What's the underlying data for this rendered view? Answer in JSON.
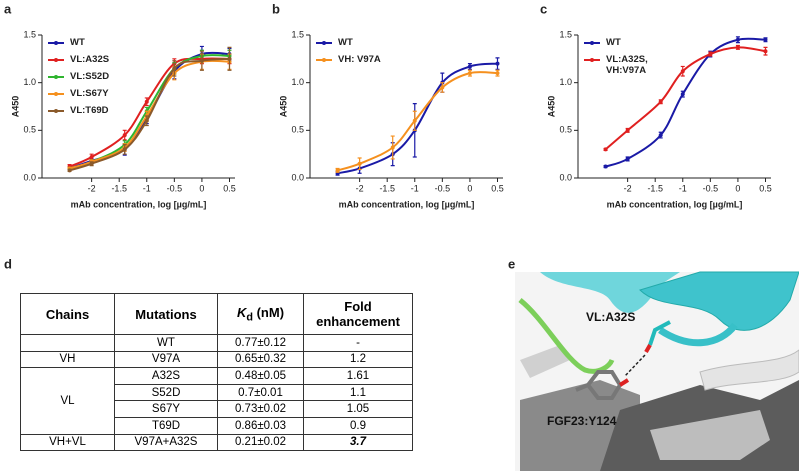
{
  "chart_data": [
    {
      "type": "line",
      "panel_label": "a",
      "xlabel": "mAb concentration, log [µg/mL]",
      "ylabel": "A450",
      "x": [
        -2.4,
        -2.0,
        -1.4,
        -1.0,
        -0.5,
        0,
        0.5
      ],
      "xlim": [
        -2.9,
        0.6
      ],
      "xticks": [
        -2,
        -1.5,
        -1,
        -0.5,
        0,
        0.5
      ],
      "ylim": [
        0,
        1.5
      ],
      "yticks": [
        {
          "value": 0,
          "label": "0.0"
        },
        {
          "value": 0.5,
          "label": "0.5"
        },
        {
          "value": 1,
          "label": "1.0"
        },
        {
          "value": 1.5,
          "label": "1.5"
        }
      ],
      "legend": "upper left",
      "series": [
        {
          "name": "WT",
          "color": "#1a1aa6",
          "values": [
            0.1,
            0.18,
            0.3,
            0.62,
            1.12,
            1.3,
            1.3
          ],
          "errors": [
            0.01,
            0.02,
            0.06,
            0.05,
            0.08,
            0.08,
            0.06
          ]
        },
        {
          "name": "VL:A32S",
          "color": "#e02020",
          "values": [
            0.12,
            0.22,
            0.45,
            0.8,
            1.2,
            1.25,
            1.25
          ],
          "errors": [
            0.02,
            0.03,
            0.05,
            0.04,
            0.05,
            0.05,
            0.05
          ]
        },
        {
          "name": "VL:S52D",
          "color": "#2fb52f",
          "values": [
            0.1,
            0.17,
            0.35,
            0.7,
            1.15,
            1.28,
            1.28
          ],
          "errors": [
            0.01,
            0.02,
            0.04,
            0.04,
            0.06,
            0.06,
            0.06
          ]
        },
        {
          "name": "VL:S67Y",
          "color": "#f5901e",
          "values": [
            0.1,
            0.17,
            0.32,
            0.65,
            1.1,
            1.22,
            1.22
          ],
          "errors": [
            0.01,
            0.02,
            0.04,
            0.05,
            0.07,
            0.08,
            0.08
          ]
        },
        {
          "name": "VL:T69D",
          "color": "#8b5a2b",
          "values": [
            0.08,
            0.15,
            0.3,
            0.6,
            1.15,
            1.23,
            1.25
          ],
          "errors": [
            0.01,
            0.02,
            0.05,
            0.05,
            0.08,
            0.1,
            0.12
          ]
        }
      ]
    },
    {
      "type": "line",
      "panel_label": "b",
      "xlabel": "mAb concentration, log [µg/mL]",
      "ylabel": "A450",
      "x": [
        -2.4,
        -2.0,
        -1.4,
        -1.0,
        -0.5,
        0,
        0.5
      ],
      "xlim": [
        -2.9,
        0.6
      ],
      "xticks": [
        -2,
        -1.5,
        -1,
        -0.5,
        0,
        0.5
      ],
      "ylim": [
        0,
        1.5
      ],
      "yticks": [
        {
          "value": 0,
          "label": "0.0"
        },
        {
          "value": 0.5,
          "label": "0.5"
        },
        {
          "value": 1,
          "label": "1.0"
        },
        {
          "value": 1.5,
          "label": "1.5"
        }
      ],
      "legend": "upper left",
      "series": [
        {
          "name": "WT",
          "color": "#1a1aa6",
          "values": [
            0.05,
            0.1,
            0.25,
            0.5,
            1.0,
            1.17,
            1.2
          ],
          "errors": [
            0.02,
            0.05,
            0.12,
            0.28,
            0.1,
            0.03,
            0.06
          ]
        },
        {
          "name": "VH: V97A",
          "color": "#f5901e",
          "values": [
            0.08,
            0.15,
            0.32,
            0.6,
            0.95,
            1.1,
            1.1
          ],
          "errors": [
            0.02,
            0.06,
            0.12,
            0.1,
            0.05,
            0.03,
            0.03
          ]
        }
      ]
    },
    {
      "type": "line",
      "panel_label": "c",
      "xlabel": "mAb concentration, log [µg/mL]",
      "ylabel": "A450",
      "x": [
        -2.4,
        -2.0,
        -1.4,
        -1.0,
        -0.5,
        0,
        0.5
      ],
      "xlim": [
        -2.9,
        0.6
      ],
      "xticks": [
        -2,
        -1.5,
        -1,
        -0.5,
        0,
        0.5
      ],
      "ylim": [
        0,
        1.5
      ],
      "yticks": [
        {
          "value": 0,
          "label": "0.0"
        },
        {
          "value": 0.5,
          "label": "0.5"
        },
        {
          "value": 1,
          "label": "1.0"
        },
        {
          "value": 1.5,
          "label": "1.5"
        }
      ],
      "legend": "upper left",
      "series": [
        {
          "name": "WT",
          "color": "#1a1aa6",
          "values": [
            0.12,
            0.2,
            0.45,
            0.88,
            1.3,
            1.45,
            1.45
          ],
          "errors": [
            0.01,
            0.02,
            0.03,
            0.03,
            0.03,
            0.03,
            0.02
          ]
        },
        {
          "name": "VL:A32S, VH:V97A",
          "color": "#e02020",
          "values": [
            0.3,
            0.5,
            0.8,
            1.12,
            1.3,
            1.37,
            1.33
          ],
          "errors": [
            0.01,
            0.02,
            0.02,
            0.05,
            0.02,
            0.02,
            0.04
          ]
        }
      ]
    }
  ],
  "table": {
    "panel_label": "d",
    "header": [
      "Chains",
      "Mutations",
      {
        "symbol": "K",
        "subscript": "d",
        "unit": "(nM)"
      },
      "Fold enhancement"
    ],
    "groups": [
      {
        "rows": [
          [
            "WT",
            "0.77±0.12",
            "-"
          ]
        ]
      },
      {
        "chain": "VH",
        "rows": [
          [
            "V97A",
            "0.65±0.32",
            "1.2"
          ]
        ]
      },
      {
        "chain": "VL",
        "rows": [
          [
            "A32S",
            "0.48±0.05",
            "1.61"
          ],
          [
            "S52D",
            "0.7±0.01",
            "1.1"
          ],
          [
            "S67Y",
            "0.73±0.02",
            "1.05"
          ],
          [
            "T69D",
            "0.86±0.03",
            "0.9"
          ]
        ]
      },
      {
        "chain": "VH+VL",
        "rows": [
          [
            "V97A+A32S",
            "0.21±0.02",
            "3.7"
          ]
        ]
      }
    ]
  },
  "structure": {
    "panel_label": "e",
    "labels": [
      "VL:A32S",
      "FGF23:Y124"
    ]
  }
}
